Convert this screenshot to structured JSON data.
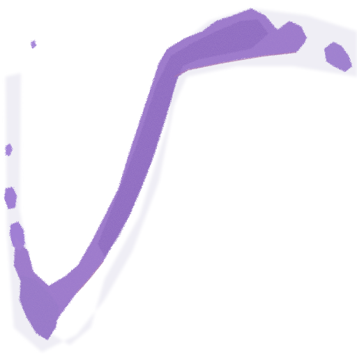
{
  "image": {
    "kind": "whole-slide tissue thumbnail",
    "stain": "H&E",
    "colors": {
      "background": "#ffffff",
      "halo": "#ecebf3",
      "tissue_main": "#9a78cc",
      "tissue_dark": "#7a56b0",
      "tissue_light": "#b9a0de",
      "edge_pink": "#b07aa8"
    }
  }
}
